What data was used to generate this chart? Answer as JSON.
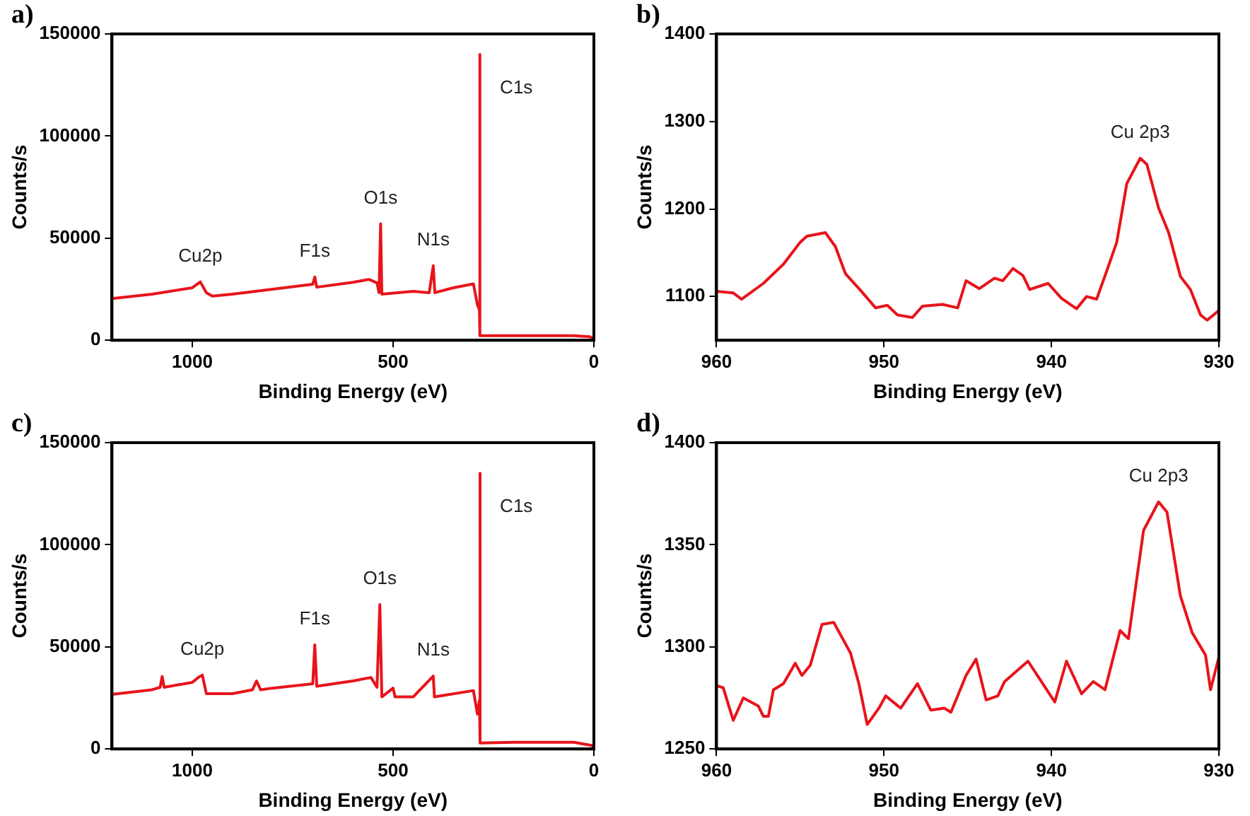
{
  "chart_data": [
    {
      "type": "line",
      "title": "a)",
      "xlabel": "Binding Energy (eV)",
      "ylabel": "Counts/s",
      "xlim": [
        1200,
        0
      ],
      "xticks": [
        1000,
        500,
        0
      ],
      "ylim": [
        0,
        150000
      ],
      "yticks": [
        0,
        50000,
        100000,
        150000
      ],
      "grid": false,
      "legend": false,
      "series": [
        {
          "color": "#e8141b",
          "x": [
            1200,
            1100,
            1000,
            980,
            965,
            950,
            900,
            800,
            700,
            695,
            690,
            600,
            560,
            540,
            535,
            531,
            528,
            450,
            410,
            400,
            396,
            350,
            300,
            290,
            285,
            284.8,
            283,
            200,
            50,
            10,
            0
          ],
          "values": [
            20400,
            22600,
            25700,
            28600,
            23300,
            21600,
            22600,
            25000,
            27400,
            31000,
            26000,
            28400,
            29800,
            28100,
            23300,
            57000,
            22600,
            24000,
            23300,
            36500,
            23300,
            25700,
            27600,
            17300,
            15000,
            140000,
            2200,
            2200,
            2200,
            1700,
            500
          ]
        }
      ],
      "annotations": [
        {
          "text": "C1s",
          "x": 284.8,
          "y": 140000
        },
        {
          "text": "O1s",
          "x": 531,
          "y": 57000
        },
        {
          "text": "N1s",
          "x": 400,
          "y": 36500
        },
        {
          "text": "F1s",
          "x": 695,
          "y": 31000
        },
        {
          "text": "Cu2p",
          "x": 980,
          "y": 28600
        }
      ]
    },
    {
      "type": "line",
      "title": "b)",
      "xlabel": "Binding Energy (eV)",
      "ylabel": "Counts/s",
      "xlim": [
        960,
        930
      ],
      "xticks": [
        960,
        950,
        940,
        930
      ],
      "ylim": [
        1050,
        1400
      ],
      "yticks": [
        1100,
        1200,
        1300,
        1400
      ],
      "grid": false,
      "legend": false,
      "series": [
        {
          "color": "#e8141b",
          "x": [
            960,
            959,
            958.5,
            957.2,
            956,
            955,
            954.6,
            953.5,
            952.9,
            952.3,
            951.4,
            950.5,
            949.8,
            949.2,
            948.3,
            947.7,
            946.5,
            945.6,
            945.1,
            944.3,
            943.4,
            942.9,
            942.3,
            941.7,
            941.3,
            940.2,
            939.4,
            938.5,
            937.9,
            937.3,
            936.7,
            936.1,
            935.5,
            934.7,
            934.3,
            933.6,
            933,
            932.3,
            931.7,
            931.1,
            930.7,
            930
          ],
          "values": [
            1106,
            1104,
            1097,
            1115,
            1137,
            1162,
            1169,
            1173,
            1157,
            1126,
            1107,
            1087,
            1090,
            1079,
            1076,
            1089,
            1091,
            1087,
            1118,
            1109,
            1121,
            1118,
            1132,
            1124,
            1108,
            1115,
            1098,
            1086,
            1100,
            1097,
            1129,
            1162,
            1229,
            1258,
            1251,
            1201,
            1173,
            1123,
            1108,
            1079,
            1073,
            1084
          ]
        }
      ],
      "annotations": [
        {
          "text": "Cu 2p3",
          "x": 934.7,
          "y": 1258
        }
      ]
    },
    {
      "type": "line",
      "title": "c)",
      "xlabel": "Binding Energy (eV)",
      "ylabel": "Counts/s",
      "xlim": [
        1200,
        0
      ],
      "xticks": [
        1000,
        500,
        0
      ],
      "ylim": [
        0,
        150000
      ],
      "yticks": [
        0,
        50000,
        100000,
        150000
      ],
      "grid": false,
      "legend": false,
      "series": [
        {
          "color": "#e8141b",
          "x": [
            1200,
            1100,
            1080,
            1075,
            1070,
            1000,
            985,
            975,
            965,
            900,
            850,
            840,
            830,
            800,
            700,
            695,
            690,
            600,
            555,
            540,
            533,
            528,
            500,
            495,
            450,
            400,
            397,
            300,
            290,
            285,
            284.8,
            282,
            200,
            50,
            5,
            0
          ],
          "values": [
            26700,
            29000,
            30200,
            35500,
            30200,
            32600,
            35000,
            36200,
            27100,
            27100,
            29000,
            33300,
            29000,
            29800,
            31900,
            51000,
            30700,
            33300,
            35000,
            30200,
            70700,
            25500,
            29800,
            25500,
            25500,
            35700,
            25500,
            28600,
            17100,
            23800,
            135000,
            2900,
            3300,
            3300,
            1700,
            500
          ]
        }
      ],
      "annotations": [
        {
          "text": "C1s",
          "x": 284.8,
          "y": 135000
        },
        {
          "text": "O1s",
          "x": 533,
          "y": 70700
        },
        {
          "text": "N1s",
          "x": 400,
          "y": 35700
        },
        {
          "text": "F1s",
          "x": 695,
          "y": 51000
        },
        {
          "text": "Cu2p",
          "x": 975,
          "y": 36200
        }
      ]
    },
    {
      "type": "line",
      "title": "d)",
      "xlabel": "Binding Energy (eV)",
      "ylabel": "Counts/s",
      "xlim": [
        960,
        930
      ],
      "xticks": [
        960,
        950,
        940,
        930
      ],
      "ylim": [
        1250,
        1400
      ],
      "yticks": [
        1250,
        1300,
        1350,
        1400
      ],
      "grid": false,
      "legend": false,
      "series": [
        {
          "color": "#e8141b",
          "x": [
            960,
            959.6,
            959,
            958.4,
            957.5,
            957.2,
            956.9,
            956.6,
            956,
            955.3,
            954.9,
            954.4,
            953.7,
            953,
            952,
            951.5,
            951,
            950.3,
            949.9,
            949,
            948,
            947.2,
            946.4,
            946,
            945.1,
            944.5,
            943.9,
            943.2,
            942.8,
            942.1,
            941.4,
            940.6,
            939.8,
            939.1,
            938.2,
            937.5,
            936.8,
            935.9,
            935.4,
            934.5,
            933.6,
            933.1,
            932.3,
            931.6,
            930.8,
            930.5,
            930
          ],
          "values": [
            1281,
            1280,
            1264,
            1275,
            1271,
            1266,
            1266,
            1279,
            1282,
            1292,
            1286,
            1291,
            1311,
            1312,
            1297,
            1282,
            1262,
            1270,
            1276,
            1270,
            1282,
            1269,
            1270,
            1268,
            1286,
            1294,
            1274,
            1276,
            1283,
            1288,
            1293,
            1283,
            1273,
            1293,
            1277,
            1283,
            1279,
            1308,
            1304,
            1357,
            1371,
            1366,
            1325,
            1307,
            1296,
            1279,
            1295
          ]
        }
      ],
      "annotations": [
        {
          "text": "Cu 2p3",
          "x": 933.6,
          "y": 1371
        }
      ]
    }
  ]
}
